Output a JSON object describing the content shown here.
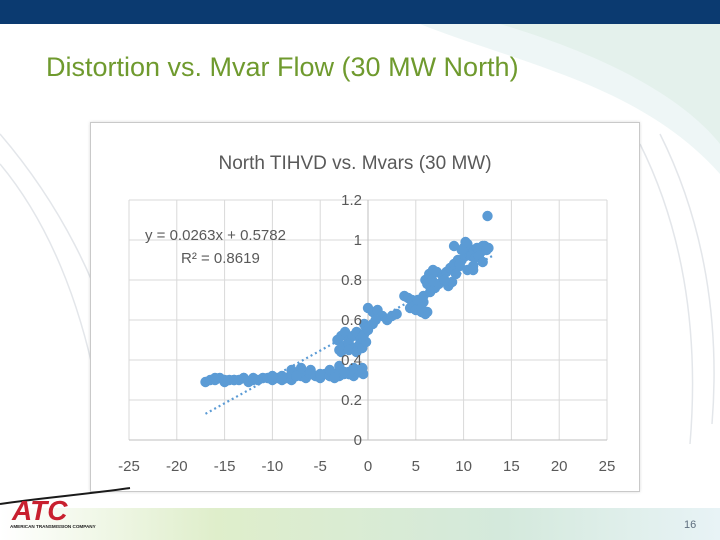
{
  "slide": {
    "title": "Distortion vs. Mvar Flow (30 MW North)",
    "page_number": "16",
    "logo_text": "ATC",
    "logo_subtext": "AMERICAN TRANSMISSION COMPANY",
    "colors": {
      "top_bar": "#0b3a70",
      "title": "#6f9a2e",
      "logo_red": "#c8202f"
    }
  },
  "chart_data": {
    "type": "scatter",
    "title": "North TIHVD vs. Mvars (30 MW)",
    "xlabel": "",
    "ylabel": "",
    "xlim": [
      -25,
      25
    ],
    "ylim": [
      0,
      1.2
    ],
    "x_ticks": [
      "-25",
      "-20",
      "-15",
      "-10",
      "-5",
      "0",
      "5",
      "10",
      "15",
      "20",
      "25"
    ],
    "y_ticks": [
      "0",
      "0.2",
      "0.4",
      "0.6",
      "0.8",
      "1",
      "1.2"
    ],
    "grid": true,
    "legend": "none",
    "marker_color": "#5b9bd5",
    "trendline": {
      "equation": "y = 0.0263x + 0.5782",
      "r_squared": "R² = 0.8619",
      "slope": 0.0263,
      "intercept": 0.5782,
      "x_range": [
        -17,
        13
      ],
      "style": "dotted"
    },
    "series": [
      {
        "x": [
          -17,
          -16.5,
          -16,
          -15.5,
          -15,
          -14.5,
          -14,
          -13.5,
          -13,
          -12.5,
          -12,
          -11.5,
          -11,
          -10.5,
          -10,
          -9.5,
          -9,
          -8.5,
          -8,
          -7.5,
          -7,
          -6.5,
          -6,
          -5.5,
          -5,
          -4.5,
          -4,
          -3.5,
          -3,
          -2.5,
          -2,
          -1.5,
          -1,
          -0.5,
          -16,
          -15,
          -14,
          -13,
          -12,
          -10,
          -9,
          -8,
          -7,
          -6,
          -5,
          -4,
          -3,
          -2,
          -1,
          -8,
          -7,
          -6,
          -4,
          -3,
          -2,
          -1,
          -7.5,
          -3.5,
          -2.5,
          -1.5,
          -3.2,
          -2.8,
          -2.4,
          -2,
          -1.6,
          -1.2,
          -0.8,
          -0.4,
          -3,
          -2.5,
          -2,
          -1.5,
          -1,
          -0.5,
          -2.8,
          -2,
          -1.2,
          -0.6,
          -0.2,
          -0.6,
          -0.4,
          0,
          0.5,
          1,
          1.5,
          -0.2,
          0.5,
          0.8,
          2,
          2.5,
          3,
          -0.5,
          0,
          3.8,
          4.2,
          4.6,
          5,
          5.4,
          5.8,
          6.2,
          4.4,
          5,
          5.6,
          6,
          5.2,
          5.6,
          5.8,
          6,
          6.4,
          6.8,
          7.2,
          6.2,
          6.6,
          7,
          6.5,
          6.7,
          7.4,
          7.8,
          8.2,
          8.6,
          9,
          9.4,
          9.8,
          10.2,
          10.6,
          11,
          11.4,
          11.8,
          12.2,
          12.6,
          8.4,
          8.8,
          9.2,
          9.6,
          10,
          10.4,
          10.8,
          11.2,
          11.6,
          12,
          8,
          9,
          9.6,
          10.4,
          11,
          11.6,
          12,
          12.4,
          10.2,
          11,
          9.8,
          12.5
        ],
        "y": [
          0.29,
          0.3,
          0.3,
          0.31,
          0.29,
          0.3,
          0.3,
          0.3,
          0.31,
          0.29,
          0.3,
          0.3,
          0.31,
          0.31,
          0.3,
          0.31,
          0.32,
          0.31,
          0.3,
          0.32,
          0.32,
          0.31,
          0.33,
          0.32,
          0.31,
          0.33,
          0.32,
          0.33,
          0.32,
          0.33,
          0.33,
          0.32,
          0.34,
          0.33,
          0.31,
          0.3,
          0.3,
          0.31,
          0.31,
          0.32,
          0.3,
          0.33,
          0.34,
          0.33,
          0.33,
          0.32,
          0.34,
          0.33,
          0.34,
          0.35,
          0.36,
          0.35,
          0.35,
          0.37,
          0.34,
          0.35,
          0.32,
          0.31,
          0.34,
          0.36,
          0.5,
          0.52,
          0.54,
          0.5,
          0.52,
          0.54,
          0.5,
          0.53,
          0.45,
          0.47,
          0.48,
          0.46,
          0.47,
          0.49,
          0.44,
          0.45,
          0.44,
          0.46,
          0.49,
          0.36,
          0.58,
          0.66,
          0.64,
          0.65,
          0.62,
          0.56,
          0.58,
          0.6,
          0.6,
          0.62,
          0.63,
          0.52,
          0.55,
          0.72,
          0.71,
          0.7,
          0.68,
          0.7,
          0.69,
          0.64,
          0.66,
          0.65,
          0.64,
          0.63,
          0.7,
          0.66,
          0.72,
          0.8,
          0.83,
          0.85,
          0.84,
          0.78,
          0.76,
          0.76,
          0.74,
          0.8,
          0.78,
          0.82,
          0.84,
          0.86,
          0.88,
          0.9,
          0.9,
          0.92,
          0.93,
          0.95,
          0.96,
          0.94,
          0.97,
          0.96,
          0.77,
          0.79,
          0.83,
          0.87,
          0.96,
          0.98,
          0.92,
          0.91,
          0.95,
          0.97,
          0.8,
          0.97,
          0.88,
          0.85,
          0.85,
          0.92,
          0.89,
          0.95,
          0.99,
          0.87,
          0.95,
          1.12
        ]
      }
    ]
  }
}
